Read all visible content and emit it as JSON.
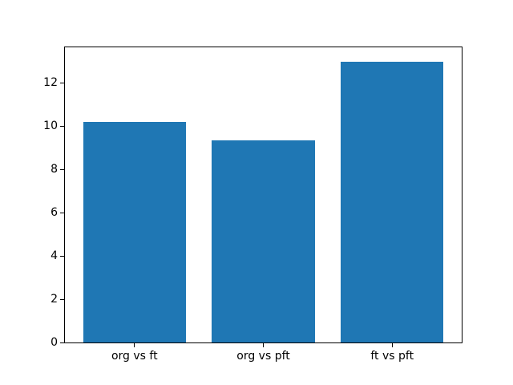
{
  "figure": {
    "background_color": "#ffffff",
    "spine_color": "#000000",
    "tick_color": "#000000"
  },
  "chart_data": {
    "type": "bar",
    "title": "",
    "xlabel": "",
    "ylabel": "",
    "categories": [
      "org vs ft",
      "org vs pft",
      "ft vs pft"
    ],
    "values": [
      10.2,
      9.35,
      13.0
    ],
    "bar_color": "#1f77b4",
    "bar_width": 0.8,
    "xlim": [
      -0.54,
      2.54
    ],
    "ylim": [
      0,
      13.65
    ],
    "yticks": [
      0,
      2,
      4,
      6,
      8,
      10,
      12
    ],
    "grid": false,
    "legend": null
  }
}
